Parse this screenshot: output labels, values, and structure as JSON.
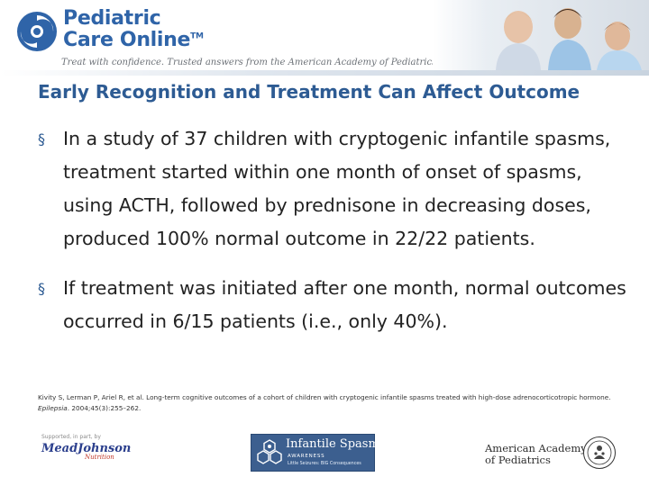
{
  "header": {
    "brand_line1": "Pediatric",
    "brand_line2": "Care Online",
    "brand_tm": "TM",
    "tagline": "Treat with confidence. Trusted answers from the American Academy of Pediatrics.",
    "logo_icon": "pco-swirl-icon"
  },
  "slide": {
    "title": "Early Recognition and Treatment Can Affect Outcome",
    "bullet_marker": "§",
    "bullets": [
      "In a study of 37 children with cryptogenic infantile spasms, treatment started within one month of onset of spasms, using ACTH, followed by prednisone in decreasing doses, produced 100% normal outcome in 22/22 patients.",
      "If treatment was initiated after one month, normal outcomes occurred in 6/15 patients (i.e., only 40%)."
    ],
    "citation": {
      "text": "Kivity S, Lerman P, Ariel R, et al. Long-term cognitive outcomes of a cohort of children with cryptogenic infantile spasms treated with high-dose adrenocorticotropic hormone. ",
      "journal": "Epilepsia",
      "details": ". 2004;45(3):255–262."
    }
  },
  "footer": {
    "sponsor_prefix": "Supported, in part, by",
    "sponsor_name": "MeadJohnson",
    "sponsor_sub": "Nutrition",
    "isa_title": "Infantile Spasms",
    "isa_awareness": "AWARENESS",
    "isa_tagline": "Little Seizures: BIG Consequences",
    "aap_line1": "American Academy",
    "aap_line2": "of Pediatrics"
  },
  "colors": {
    "brand_blue": "#2f64a8",
    "title_blue": "#2d5b93",
    "isa_blue": "#3c5f8f"
  }
}
